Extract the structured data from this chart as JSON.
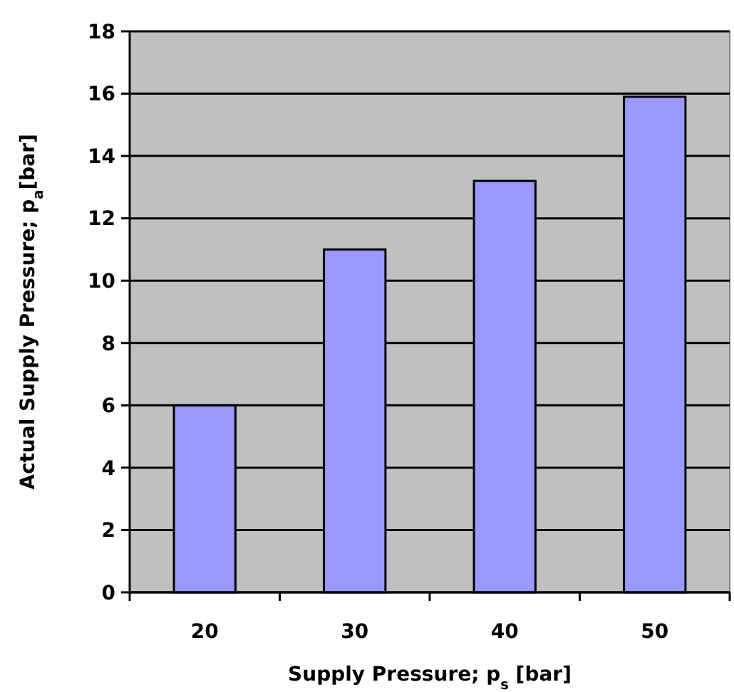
{
  "chart_data": {
    "type": "bar",
    "xlabel": "Supply Pressure; p$_{s}$ [bar]",
    "ylabel": "Actual Supply Pressure; p$_{a}$[bar]",
    "categories": [
      "20",
      "30",
      "40",
      "50"
    ],
    "values": [
      6,
      11,
      13.2,
      15.9
    ],
    "color": "#9999ff",
    "ylim": [
      0,
      18
    ],
    "yticks": [
      0,
      2,
      4,
      6,
      8,
      10,
      12,
      14,
      16,
      18
    ],
    "grid": "y"
  }
}
